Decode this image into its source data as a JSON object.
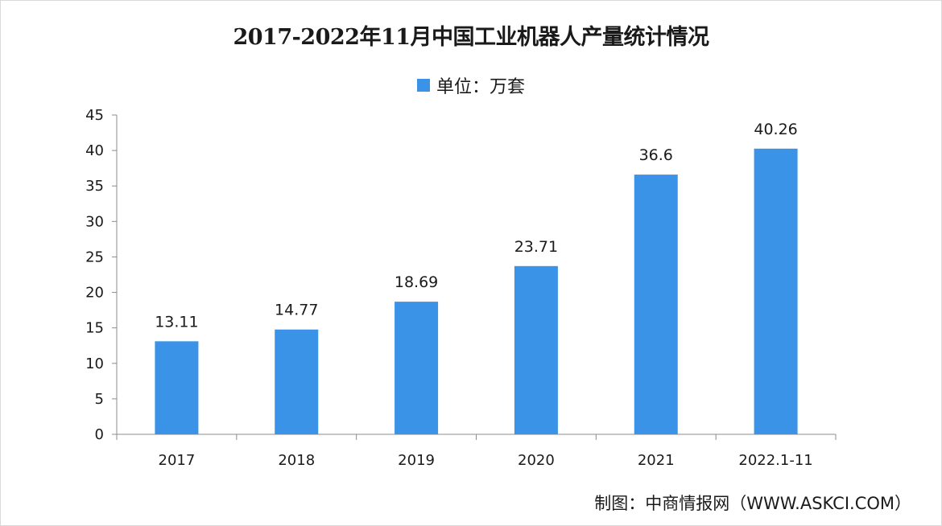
{
  "chart_data": {
    "type": "bar",
    "title": "2017-2022年11月中国工业机器人产量统计情况",
    "legend": [
      "单位：万套"
    ],
    "categories": [
      "2017",
      "2018",
      "2019",
      "2020",
      "2021",
      "2022.1-11"
    ],
    "series": [
      {
        "name": "单位：万套",
        "values": [
          13.11,
          14.77,
          18.69,
          23.71,
          36.6,
          40.26
        ]
      }
    ],
    "data_labels": [
      "13.11",
      "14.77",
      "18.69",
      "23.71",
      "36.6",
      "40.26"
    ],
    "yticks": [
      "0",
      "5",
      "10",
      "15",
      "20",
      "25",
      "30",
      "35",
      "40",
      "45"
    ],
    "ylim": [
      0,
      45
    ],
    "xlabel": "",
    "ylabel": "",
    "grid": false,
    "legend_position": "top",
    "bar_color": "#3a93e6"
  },
  "source": "制图：中商情报网（WWW.ASKCI.COM）"
}
